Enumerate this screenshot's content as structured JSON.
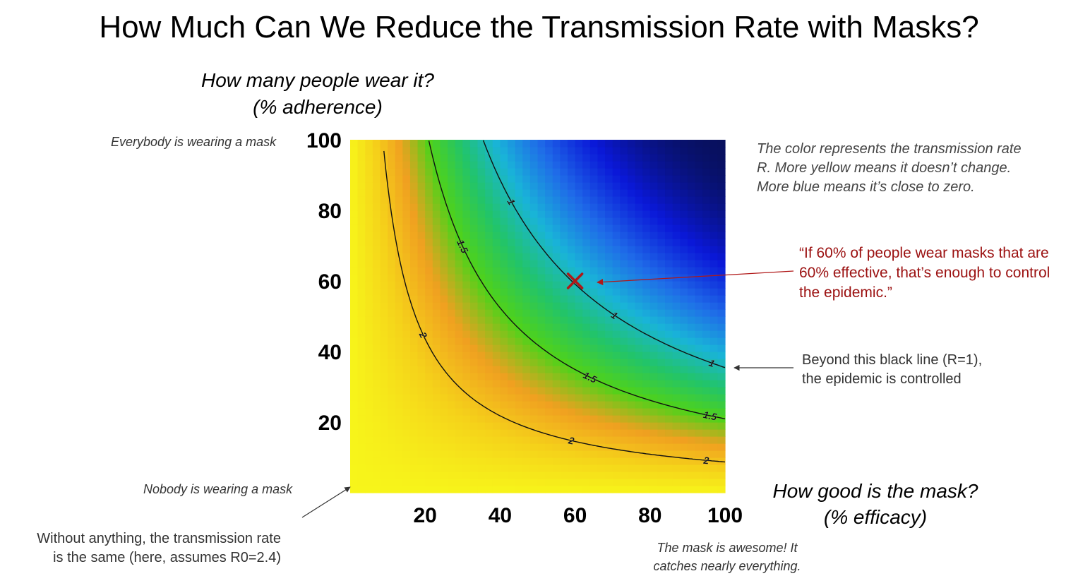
{
  "title": "How Much Can We Reduce the Transmission Rate with Masks?",
  "y_axis_title": [
    "How many people wear it?",
    "(% adherence)"
  ],
  "x_axis_title": [
    "How good is the mask?",
    "(% efficacy)"
  ],
  "annotations": {
    "top_left": "Everybody is wearing a mask",
    "bottom_left": "Nobody is wearing a mask",
    "bottom_right": [
      "The mask is awesome! It",
      "catches nearly everything."
    ],
    "baseline_note": [
      "Without anything, the transmission rate",
      "is the same (here, assumes R0=2.4)"
    ],
    "color_note": [
      "The color represents the transmission rate",
      "R. More yellow means it doesn’t change.",
      "More blue means it’s close to zero."
    ],
    "quote": [
      "“If 60% of people wear masks that are",
      "60% effective, that’s enough to control",
      "the epidemic.”"
    ],
    "line_note": [
      "Beyond this black line (R=1),",
      "the epidemic is controlled"
    ]
  },
  "chart_data": {
    "type": "heatmap",
    "title": "How Much Can We Reduce the Transmission Rate with Masks?",
    "xlabel": "How good is the mask? (% efficacy)",
    "ylabel": "How many people wear it? (% adherence)",
    "x_range": [
      0,
      100
    ],
    "y_range": [
      0,
      100
    ],
    "x_ticks": [
      "20",
      "40",
      "60",
      "80",
      "100"
    ],
    "y_ticks": [
      "20",
      "40",
      "60",
      "80",
      "100"
    ],
    "R0": 2.4,
    "model": "R = R0 * (1 - efficacy * adherence)^2",
    "grid": false,
    "colormap": {
      "description": "yellow (R unchanged) to blue (R near zero)",
      "stops": [
        "#08105e",
        "#0a18d8",
        "#1f6be8",
        "#19b4d8",
        "#22c46a",
        "#4fd21a",
        "#f0a020",
        "#f5d21a",
        "#f7f51a"
      ]
    },
    "contours": [
      {
        "level": 2,
        "label": "2"
      },
      {
        "level": 1.5,
        "label": "1.5"
      },
      {
        "level": 1,
        "label": "1"
      }
    ],
    "marker": {
      "x": 60,
      "y": 60,
      "symbol": "x",
      "color": "#b01818"
    }
  }
}
